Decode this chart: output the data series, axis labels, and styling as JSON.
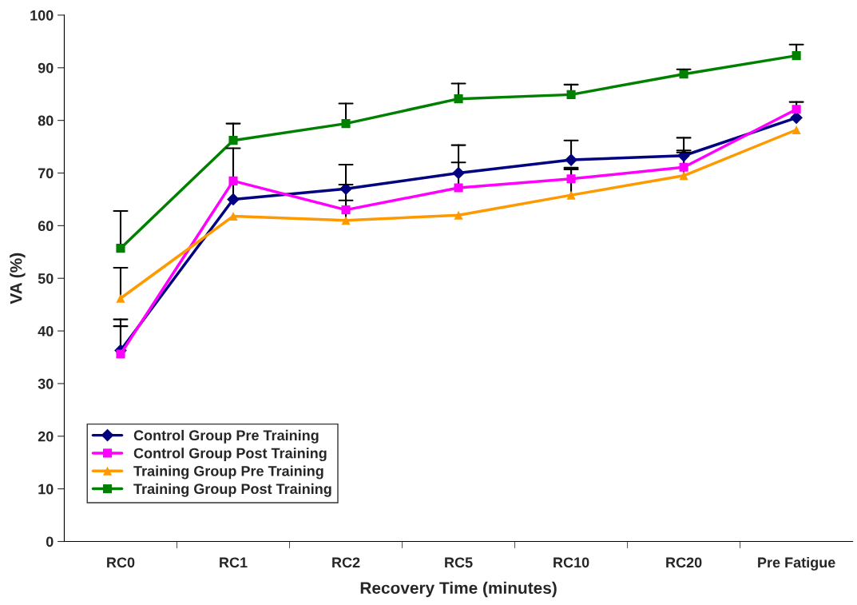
{
  "chart_data": {
    "type": "line",
    "xlabel": "Recovery Time (minutes)",
    "ylabel": "VA (%)",
    "categories": [
      "RC0",
      "RC1",
      "RC2",
      "RC5",
      "RC10",
      "RC20",
      "Pre Fatigue"
    ],
    "ylim": [
      0,
      100
    ],
    "yticks": [
      0,
      10,
      20,
      30,
      40,
      50,
      60,
      70,
      80,
      90,
      100
    ],
    "grid": false,
    "legend": "bottom left",
    "series": [
      {
        "name": "Control Group Pre Training",
        "color": "#000080",
        "marker": "diamond",
        "values": [
          36.3,
          65,
          67,
          70,
          72.5,
          73.3,
          80.5
        ],
        "errors": [
          [
            36.3,
            42.2
          ],
          [
            65,
            74.7
          ],
          [
            67,
            71.6
          ],
          [
            70,
            75.3
          ],
          [
            72.5,
            76.2
          ],
          [
            73.3,
            76.7
          ],
          null
        ]
      },
      {
        "name": "Control Group Post Training",
        "color": "#ff00ff",
        "marker": "square",
        "values": [
          35.6,
          68.5,
          63,
          67.2,
          68.9,
          71.1,
          82.1
        ],
        "errors": [
          [
            35.6,
            40.9
          ],
          null,
          [
            63,
            67.8
          ],
          [
            67.2,
            72
          ],
          [
            68.9,
            71
          ],
          [
            71.1,
            74.3
          ],
          [
            82.1,
            83.5
          ]
        ]
      },
      {
        "name": "Training Group Pre Training",
        "color": "#ff9900",
        "marker": "triangle",
        "values": [
          46.2,
          61.8,
          61,
          62,
          65.8,
          69.5,
          78.2
        ],
        "errors": [
          [
            46.2,
            52
          ],
          null,
          [
            61,
            64.8
          ],
          null,
          [
            65.8,
            70.7
          ],
          [
            69.5,
            73.9
          ],
          null
        ]
      },
      {
        "name": "Training Group Post Training",
        "color": "#008000",
        "marker": "square",
        "values": [
          55.7,
          76.2,
          79.4,
          84.1,
          84.9,
          88.8,
          92.3
        ],
        "errors": [
          [
            55.7,
            62.8
          ],
          [
            76.2,
            79.4
          ],
          [
            79.4,
            83.2
          ],
          [
            84.1,
            87
          ],
          [
            84.9,
            86.8
          ],
          [
            88.8,
            89.7
          ],
          [
            92.3,
            94.4
          ]
        ]
      }
    ]
  }
}
